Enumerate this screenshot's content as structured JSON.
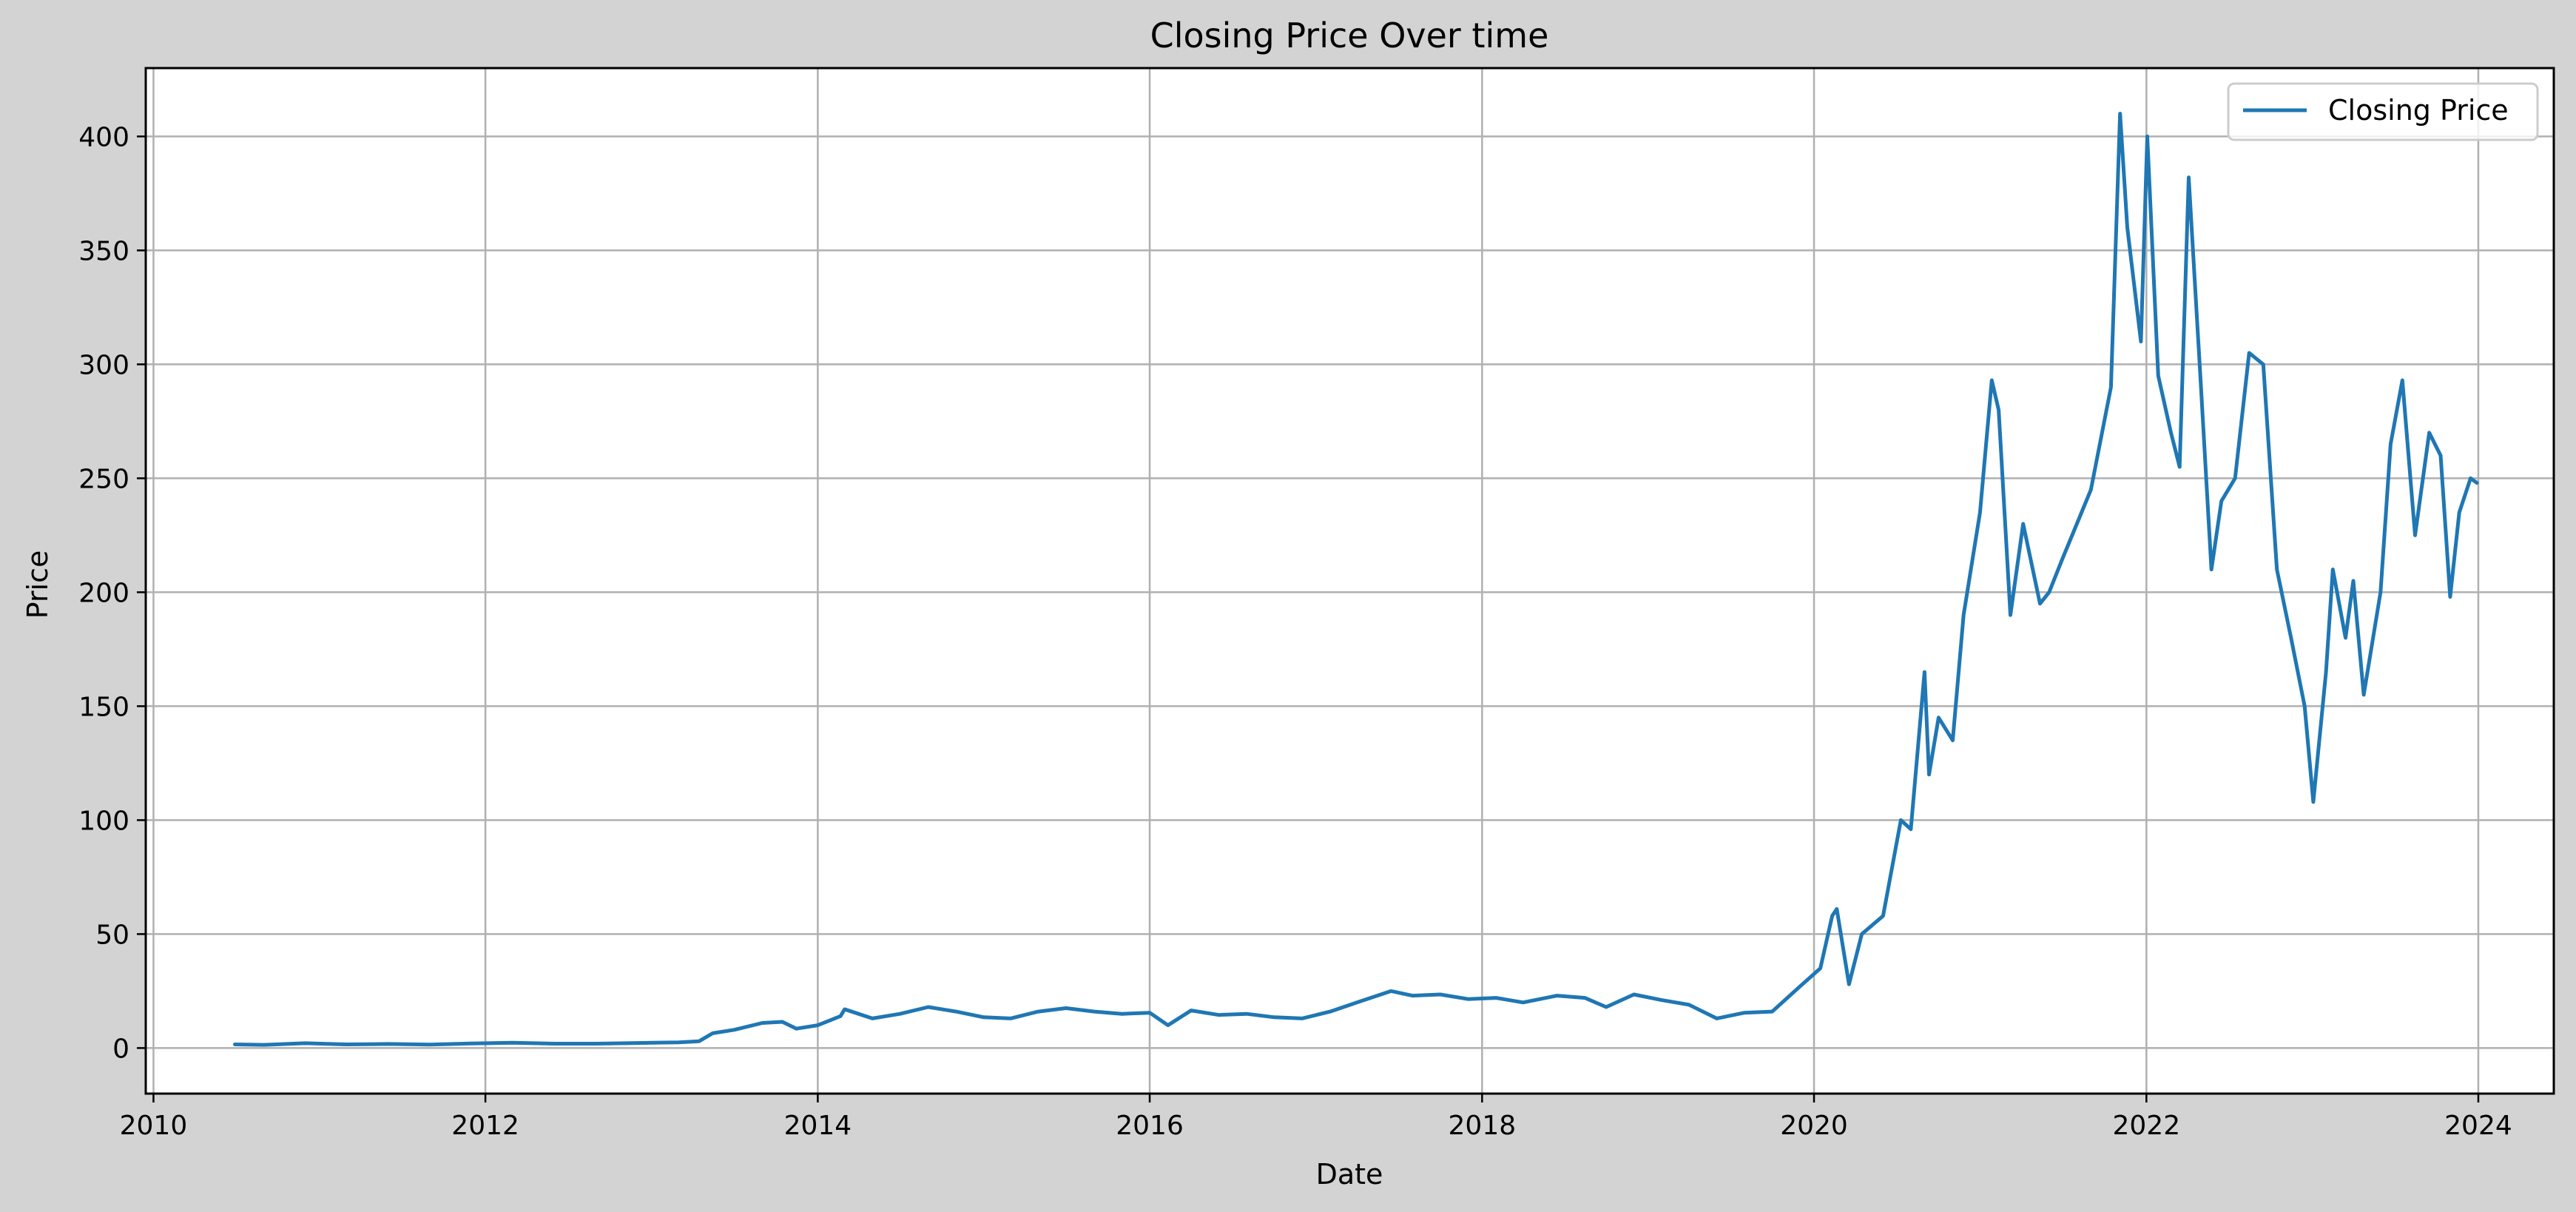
{
  "chart_data": {
    "type": "line",
    "title": "Closing Price Over time",
    "xlabel": "Date",
    "ylabel": "Price",
    "x_axis_type": "date",
    "xlim": [
      "2009-12-15",
      "2024-06-15"
    ],
    "ylim": [
      -20,
      430
    ],
    "x_ticks": [
      "2010-01-01",
      "2012-01-01",
      "2014-01-01",
      "2016-01-01",
      "2018-01-01",
      "2020-01-01",
      "2022-01-01",
      "2024-01-01"
    ],
    "x_tick_labels": [
      "2010",
      "2012",
      "2014",
      "2016",
      "2018",
      "2020",
      "2022",
      "2024"
    ],
    "y_ticks": [
      0,
      50,
      100,
      150,
      200,
      250,
      300,
      350,
      400
    ],
    "y_tick_labels": [
      "0",
      "50",
      "100",
      "150",
      "200",
      "250",
      "300",
      "350",
      "400"
    ],
    "grid": true,
    "legend_position": "top-right",
    "colors": {
      "series": "#1f77b4",
      "background": "#d3d3d3",
      "plot_background": "#ffffff",
      "grid": "#b0b0b0"
    },
    "series": [
      {
        "name": "Closing Price",
        "points": [
          [
            "2010-06-29",
            1.6
          ],
          [
            "2010-09-01",
            1.4
          ],
          [
            "2010-12-01",
            2.1
          ],
          [
            "2011-03-01",
            1.6
          ],
          [
            "2011-06-01",
            1.8
          ],
          [
            "2011-09-01",
            1.5
          ],
          [
            "2011-12-01",
            2.0
          ],
          [
            "2012-03-01",
            2.3
          ],
          [
            "2012-06-01",
            1.9
          ],
          [
            "2012-09-01",
            1.9
          ],
          [
            "2012-12-01",
            2.2
          ],
          [
            "2013-03-01",
            2.5
          ],
          [
            "2013-04-15",
            3.0
          ],
          [
            "2013-05-15",
            6.5
          ],
          [
            "2013-07-01",
            8.0
          ],
          [
            "2013-09-01",
            11.0
          ],
          [
            "2013-10-15",
            11.5
          ],
          [
            "2013-11-15",
            8.5
          ],
          [
            "2014-01-01",
            10.0
          ],
          [
            "2014-02-20",
            14.0
          ],
          [
            "2014-03-01",
            17.0
          ],
          [
            "2014-05-01",
            13.0
          ],
          [
            "2014-07-01",
            15.0
          ],
          [
            "2014-09-01",
            18.0
          ],
          [
            "2014-11-01",
            16.0
          ],
          [
            "2015-01-01",
            13.5
          ],
          [
            "2015-03-01",
            13.0
          ],
          [
            "2015-05-01",
            16.0
          ],
          [
            "2015-07-01",
            17.5
          ],
          [
            "2015-09-01",
            16.0
          ],
          [
            "2015-11-01",
            15.0
          ],
          [
            "2016-01-01",
            15.5
          ],
          [
            "2016-02-10",
            10.0
          ],
          [
            "2016-04-01",
            16.5
          ],
          [
            "2016-06-01",
            14.5
          ],
          [
            "2016-08-01",
            15.0
          ],
          [
            "2016-10-01",
            13.5
          ],
          [
            "2016-12-01",
            13.0
          ],
          [
            "2017-02-01",
            16.0
          ],
          [
            "2017-04-01",
            20.0
          ],
          [
            "2017-06-15",
            25.0
          ],
          [
            "2017-08-01",
            23.0
          ],
          [
            "2017-10-01",
            23.5
          ],
          [
            "2017-12-01",
            21.5
          ],
          [
            "2018-02-01",
            22.0
          ],
          [
            "2018-04-01",
            20.0
          ],
          [
            "2018-06-15",
            23.0
          ],
          [
            "2018-08-15",
            22.0
          ],
          [
            "2018-10-01",
            18.0
          ],
          [
            "2018-12-01",
            23.5
          ],
          [
            "2019-02-01",
            21.0
          ],
          [
            "2019-04-01",
            19.0
          ],
          [
            "2019-06-01",
            13.0
          ],
          [
            "2019-08-01",
            15.5
          ],
          [
            "2019-10-01",
            16.0
          ],
          [
            "2019-12-01",
            27.0
          ],
          [
            "2020-01-15",
            35.0
          ],
          [
            "2020-02-10",
            58.0
          ],
          [
            "2020-02-20",
            61.0
          ],
          [
            "2020-03-18",
            28.0
          ],
          [
            "2020-04-15",
            50.0
          ],
          [
            "2020-06-01",
            58.0
          ],
          [
            "2020-07-10",
            100.0
          ],
          [
            "2020-08-01",
            96.0
          ],
          [
            "2020-08-31",
            165.0
          ],
          [
            "2020-09-10",
            120.0
          ],
          [
            "2020-10-01",
            145.0
          ],
          [
            "2020-11-01",
            135.0
          ],
          [
            "2020-11-25",
            190.0
          ],
          [
            "2020-12-31",
            235.0
          ],
          [
            "2021-01-26",
            293.0
          ],
          [
            "2021-02-10",
            280.0
          ],
          [
            "2021-03-08",
            190.0
          ],
          [
            "2021-04-05",
            230.0
          ],
          [
            "2021-05-12",
            195.0
          ],
          [
            "2021-06-01",
            200.0
          ],
          [
            "2021-07-01",
            215.0
          ],
          [
            "2021-08-01",
            230.0
          ],
          [
            "2021-09-01",
            245.0
          ],
          [
            "2021-10-15",
            290.0
          ],
          [
            "2021-11-04",
            410.0
          ],
          [
            "2021-11-20",
            360.0
          ],
          [
            "2021-12-20",
            310.0
          ],
          [
            "2022-01-03",
            400.0
          ],
          [
            "2022-01-27",
            295.0
          ],
          [
            "2022-02-24",
            270.0
          ],
          [
            "2022-03-15",
            255.0
          ],
          [
            "2022-04-04",
            382.0
          ],
          [
            "2022-05-01",
            290.0
          ],
          [
            "2022-05-24",
            210.0
          ],
          [
            "2022-06-15",
            240.0
          ],
          [
            "2022-07-15",
            250.0
          ],
          [
            "2022-08-15",
            305.0
          ],
          [
            "2022-09-15",
            300.0
          ],
          [
            "2022-10-15",
            210.0
          ],
          [
            "2022-11-15",
            180.0
          ],
          [
            "2022-12-15",
            150.0
          ],
          [
            "2023-01-03",
            108.0
          ],
          [
            "2023-01-31",
            165.0
          ],
          [
            "2023-02-15",
            210.0
          ],
          [
            "2023-03-15",
            180.0
          ],
          [
            "2023-04-01",
            205.0
          ],
          [
            "2023-04-24",
            155.0
          ],
          [
            "2023-05-31",
            200.0
          ],
          [
            "2023-06-22",
            265.0
          ],
          [
            "2023-07-18",
            293.0
          ],
          [
            "2023-08-15",
            225.0
          ],
          [
            "2023-09-15",
            270.0
          ],
          [
            "2023-10-10",
            260.0
          ],
          [
            "2023-10-31",
            198.0
          ],
          [
            "2023-11-20",
            235.0
          ],
          [
            "2023-12-15",
            250.0
          ],
          [
            "2023-12-29",
            248.0
          ]
        ]
      }
    ]
  }
}
